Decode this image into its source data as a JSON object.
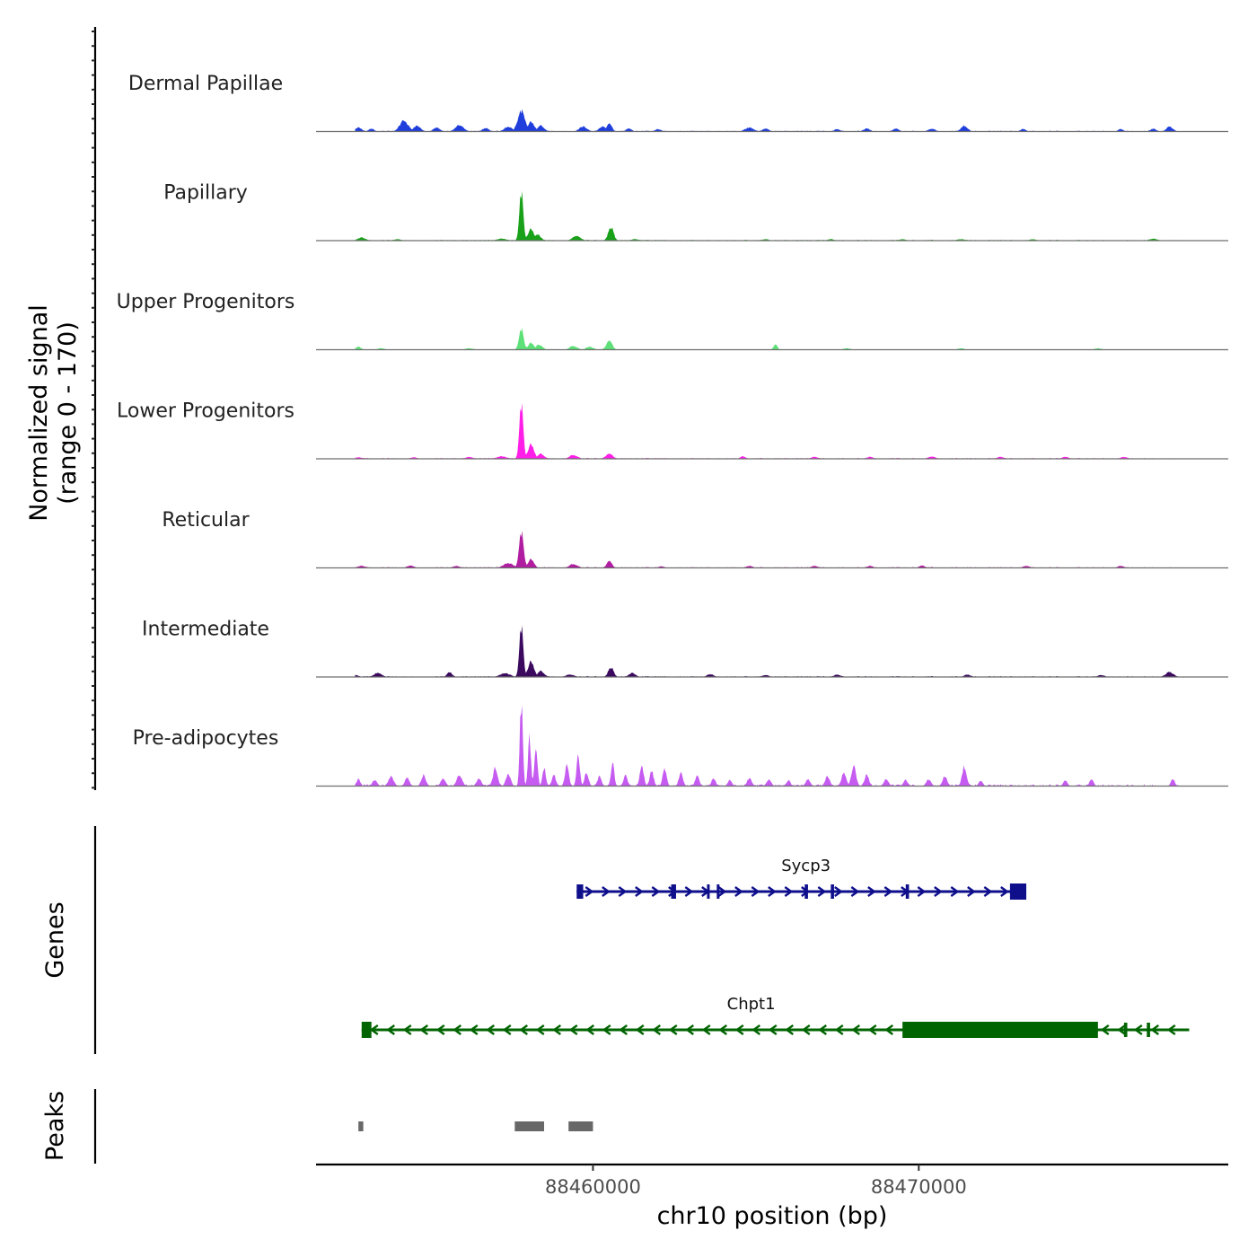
{
  "chart_data": {
    "type": "area",
    "title": "",
    "xlabel": "chr10 position (bp)",
    "x_range": [
      88451500,
      88479500
    ],
    "x_ticks": [
      88460000,
      88470000
    ],
    "x_tick_labels": [
      "88460000",
      "88470000"
    ],
    "coverage": {
      "ylabel_line1": "Normalized signal",
      "ylabel_line2": "(range 0 - 170)",
      "y_range": [
        0,
        170
      ],
      "tracks": [
        {
          "name": "Dermal Papillae",
          "color": "#1F3EDB",
          "peaks": [
            [
              88452800,
              8,
              100
            ],
            [
              88453200,
              6,
              80
            ],
            [
              88454200,
              22,
              130
            ],
            [
              88454600,
              12,
              110
            ],
            [
              88455200,
              8,
              100
            ],
            [
              88455900,
              14,
              120
            ],
            [
              88456700,
              7,
              100
            ],
            [
              88457400,
              10,
              120
            ],
            [
              88457800,
              42,
              110
            ],
            [
              88458100,
              20,
              100
            ],
            [
              88458400,
              12,
              100
            ],
            [
              88459700,
              10,
              120
            ],
            [
              88460300,
              10,
              110
            ],
            [
              88460500,
              16,
              80
            ],
            [
              88461100,
              6,
              90
            ],
            [
              88462000,
              5,
              90
            ],
            [
              88464800,
              8,
              130
            ],
            [
              88465300,
              6,
              100
            ],
            [
              88467500,
              5,
              90
            ],
            [
              88468400,
              6,
              100
            ],
            [
              88469300,
              6,
              90
            ],
            [
              88470400,
              6,
              100
            ],
            [
              88471400,
              12,
              100
            ],
            [
              88473200,
              5,
              80
            ],
            [
              88476200,
              5,
              80
            ],
            [
              88477200,
              6,
              90
            ],
            [
              88477700,
              10,
              100
            ]
          ],
          "background": [
            88452700,
            88478000,
            2
          ]
        },
        {
          "name": "Papillary",
          "color": "#1AA11A",
          "peaks": [
            [
              88452900,
              6,
              120
            ],
            [
              88454000,
              3,
              100
            ],
            [
              88457200,
              4,
              150
            ],
            [
              88457800,
              98,
              60
            ],
            [
              88458100,
              24,
              90
            ],
            [
              88458300,
              12,
              100
            ],
            [
              88459500,
              10,
              120
            ],
            [
              88460550,
              28,
              80
            ],
            [
              88461300,
              3,
              120
            ],
            [
              88465300,
              3,
              100
            ],
            [
              88467300,
              3,
              100
            ],
            [
              88469500,
              3,
              100
            ],
            [
              88471300,
              3,
              120
            ],
            [
              88473500,
              3,
              100
            ],
            [
              88477200,
              4,
              120
            ]
          ],
          "background": [
            88452700,
            88478000,
            2
          ]
        },
        {
          "name": "Upper Progenitors",
          "color": "#5CE077",
          "peaks": [
            [
              88452800,
              6,
              80
            ],
            [
              88453500,
              3,
              100
            ],
            [
              88456200,
              3,
              120
            ],
            [
              88457800,
              42,
              70
            ],
            [
              88458100,
              14,
              90
            ],
            [
              88458350,
              10,
              100
            ],
            [
              88459400,
              8,
              110
            ],
            [
              88459900,
              6,
              110
            ],
            [
              88460500,
              18,
              90
            ],
            [
              88465600,
              10,
              60
            ],
            [
              88467800,
              3,
              100
            ],
            [
              88471300,
              3,
              100
            ],
            [
              88475500,
              3,
              100
            ]
          ],
          "background": [
            88452700,
            88478000,
            1
          ]
        },
        {
          "name": "Lower Progenitors",
          "color": "#FF1FE8",
          "peaks": [
            [
              88452800,
              3,
              120
            ],
            [
              88454500,
              3,
              100
            ],
            [
              88456200,
              4,
              100
            ],
            [
              88457200,
              5,
              150
            ],
            [
              88457800,
              110,
              60
            ],
            [
              88458100,
              30,
              90
            ],
            [
              88458400,
              10,
              100
            ],
            [
              88459400,
              8,
              120
            ],
            [
              88460500,
              10,
              110
            ],
            [
              88464600,
              5,
              80
            ],
            [
              88466800,
              4,
              100
            ],
            [
              88468500,
              4,
              100
            ],
            [
              88470400,
              5,
              100
            ],
            [
              88472500,
              4,
              100
            ],
            [
              88474500,
              4,
              100
            ],
            [
              88476300,
              4,
              100
            ]
          ],
          "background": [
            88452700,
            88478000,
            2
          ]
        },
        {
          "name": "Reticular",
          "color": "#B01DA0",
          "peaks": [
            [
              88452900,
              4,
              120
            ],
            [
              88454400,
              5,
              100
            ],
            [
              88455800,
              4,
              100
            ],
            [
              88457400,
              10,
              150
            ],
            [
              88457800,
              72,
              70
            ],
            [
              88458100,
              18,
              90
            ],
            [
              88459400,
              8,
              120
            ],
            [
              88460500,
              14,
              80
            ],
            [
              88462100,
              3,
              100
            ],
            [
              88464800,
              4,
              100
            ],
            [
              88466800,
              4,
              100
            ],
            [
              88468500,
              4,
              100
            ],
            [
              88470100,
              5,
              80
            ],
            [
              88473300,
              4,
              100
            ],
            [
              88476200,
              4,
              100
            ]
          ],
          "background": [
            88452700,
            88478000,
            2
          ]
        },
        {
          "name": "Intermediate",
          "color": "#3B0A5F",
          "peaks": [
            [
              88452700,
              4,
              100
            ],
            [
              88453400,
              8,
              120
            ],
            [
              88455600,
              10,
              80
            ],
            [
              88457300,
              8,
              150
            ],
            [
              88457800,
              102,
              60
            ],
            [
              88458100,
              32,
              90
            ],
            [
              88458400,
              12,
              100
            ],
            [
              88459300,
              5,
              120
            ],
            [
              88460550,
              20,
              80
            ],
            [
              88461200,
              8,
              100
            ],
            [
              88463600,
              6,
              100
            ],
            [
              88465300,
              4,
              100
            ],
            [
              88467500,
              5,
              100
            ],
            [
              88471500,
              5,
              100
            ],
            [
              88475600,
              4,
              100
            ],
            [
              88477700,
              10,
              120
            ]
          ],
          "background": [
            88452700,
            88478000,
            2
          ]
        },
        {
          "name": "Pre-adipocytes",
          "color": "#C55BF0",
          "peaks": [
            [
              88452800,
              14,
              60
            ],
            [
              88453300,
              12,
              70
            ],
            [
              88453800,
              20,
              80
            ],
            [
              88454300,
              16,
              70
            ],
            [
              88454800,
              22,
              70
            ],
            [
              88455400,
              16,
              70
            ],
            [
              88455900,
              24,
              80
            ],
            [
              88456500,
              16,
              70
            ],
            [
              88457000,
              36,
              70
            ],
            [
              88457400,
              26,
              70
            ],
            [
              88457800,
              170,
              45
            ],
            [
              88458050,
              98,
              45
            ],
            [
              88458250,
              70,
              50
            ],
            [
              88458500,
              38,
              50
            ],
            [
              88458800,
              22,
              60
            ],
            [
              88459200,
              40,
              60
            ],
            [
              88459550,
              62,
              50
            ],
            [
              88459800,
              28,
              60
            ],
            [
              88460200,
              20,
              60
            ],
            [
              88460600,
              48,
              50
            ],
            [
              88461000,
              22,
              60
            ],
            [
              88461500,
              40,
              60
            ],
            [
              88461800,
              30,
              60
            ],
            [
              88462200,
              34,
              60
            ],
            [
              88462700,
              30,
              60
            ],
            [
              88463200,
              22,
              60
            ],
            [
              88463700,
              16,
              60
            ],
            [
              88464200,
              12,
              60
            ],
            [
              88464800,
              16,
              70
            ],
            [
              88465400,
              14,
              70
            ],
            [
              88466000,
              12,
              60
            ],
            [
              88466600,
              14,
              70
            ],
            [
              88467200,
              20,
              70
            ],
            [
              88467700,
              28,
              70
            ],
            [
              88468000,
              40,
              70
            ],
            [
              88468400,
              22,
              70
            ],
            [
              88469000,
              14,
              70
            ],
            [
              88469600,
              12,
              70
            ],
            [
              88470300,
              14,
              70
            ],
            [
              88470800,
              20,
              70
            ],
            [
              88471400,
              40,
              70
            ],
            [
              88471900,
              12,
              60
            ],
            [
              88474500,
              12,
              60
            ],
            [
              88475300,
              14,
              60
            ],
            [
              88477800,
              14,
              60
            ]
          ],
          "background": [
            88452700,
            88478000,
            4
          ]
        }
      ]
    },
    "genes": {
      "label": "Genes",
      "items": [
        {
          "name": "Sycp3",
          "strand": "+",
          "color": "#0F0F8C",
          "start": 88459500,
          "end": 88473300,
          "exons": [
            [
              88459500,
              88459700
            ],
            [
              88462400,
              88462550
            ],
            [
              88463500,
              88463550
            ],
            [
              88463800,
              88463850
            ],
            [
              88466500,
              88466600
            ],
            [
              88467300,
              88467400
            ],
            [
              88469600,
              88469700
            ],
            [
              88472800,
              88473300
            ]
          ]
        },
        {
          "name": "Chpt1",
          "strand": "-",
          "color": "#006400",
          "start": 88452900,
          "end": 88478300,
          "exons": [
            [
              88452900,
              88453200
            ],
            [
              88469500,
              88475500
            ],
            [
              88476300,
              88476400
            ],
            [
              88477000,
              88477100
            ]
          ]
        }
      ]
    },
    "peaks": {
      "label": "Peaks",
      "color": "#686868",
      "regions": [
        [
          88452800,
          88452950
        ],
        [
          88457600,
          88458500
        ],
        [
          88459250,
          88460000
        ]
      ]
    }
  }
}
